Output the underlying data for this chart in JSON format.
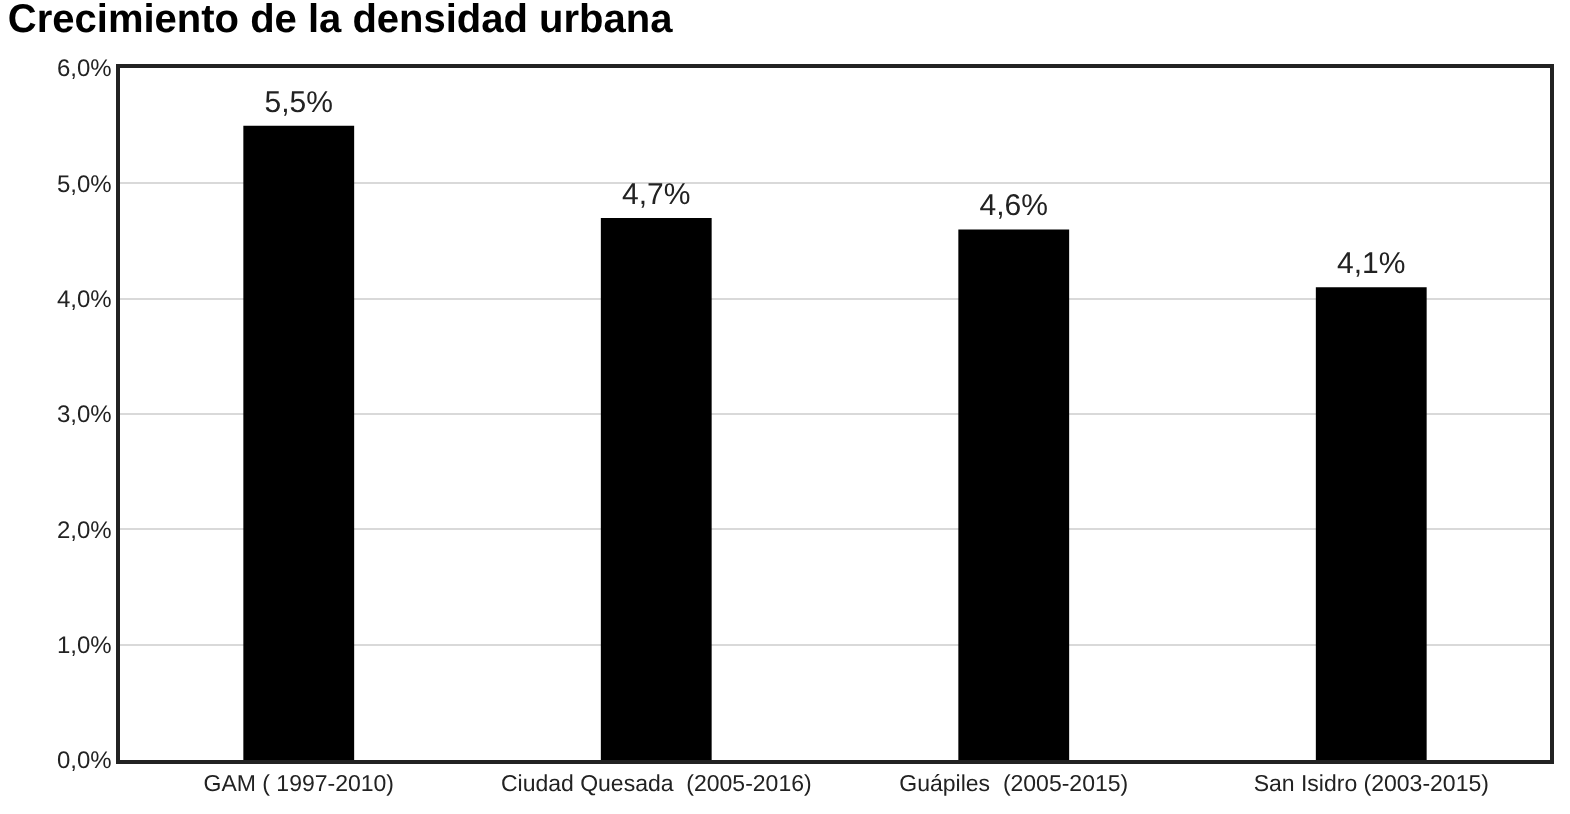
{
  "chart_data": {
    "type": "bar",
    "title": "Crecimiento de la densidad urbana",
    "categories": [
      "GAM ( 1997-2010)",
      "Ciudad Quesada  (2005-2016)",
      "Guápiles  (2005-2015)",
      "San Isidro (2003-2015)"
    ],
    "values": [
      5.5,
      4.7,
      4.6,
      4.1
    ],
    "color": "#000000",
    "value_labels": [
      "5,5%",
      "4,7%",
      "4,6%",
      "4,1%"
    ],
    "ylim": [
      0,
      6
    ],
    "yticks": [
      {
        "value": 0,
        "label": "0,0%"
      },
      {
        "value": 1,
        "label": "1,0%"
      },
      {
        "value": 2,
        "label": "2,0%"
      },
      {
        "value": 3,
        "label": "3,0%"
      },
      {
        "value": 4,
        "label": "4,0%"
      },
      {
        "value": 5,
        "label": "5,0%"
      },
      {
        "value": 6,
        "label": "6,0%"
      }
    ],
    "grid": "y",
    "legend": false
  }
}
